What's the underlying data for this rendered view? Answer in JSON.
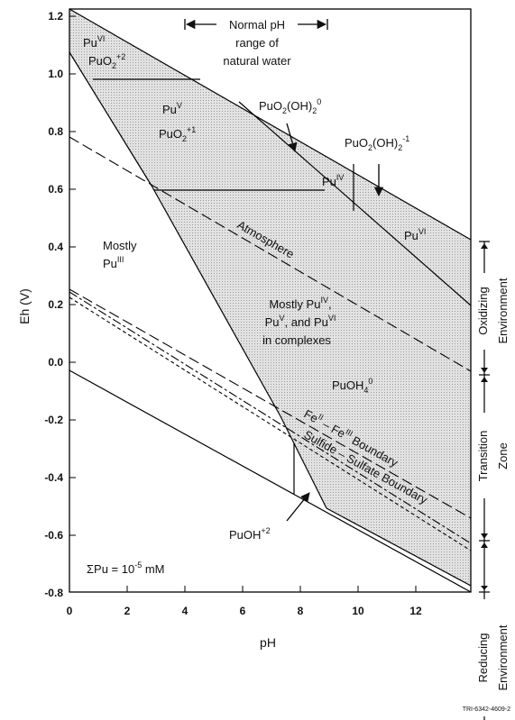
{
  "axes": {
    "x_label": "pH",
    "y_label": "Eh (V)",
    "x_ticks": [
      "0",
      "2",
      "4",
      "6",
      "8",
      "10",
      "12"
    ],
    "y_ticks": [
      "1.2",
      "1.0",
      "0.8",
      "0.6",
      "0.4",
      "0.2",
      "0.0",
      "-0.2",
      "-0.4",
      "-0.6",
      "-0.8"
    ]
  },
  "labels": {
    "normal_ph_line1": "Normal pH",
    "normal_ph_line2": "range of",
    "normal_ph_line3": "natural water",
    "pu_vi_base": "Pu",
    "pu_vi_sup": "VI",
    "puo2_2_base": "PuO",
    "puo2_2_sub": "2",
    "puo2_2_sup": "+2",
    "pu_v_base": "Pu",
    "pu_v_sup": "V",
    "puo2_1_base": "PuO",
    "puo2_1_sub": "2",
    "puo2_1_sup": "+1",
    "puo2oh2_0_a": "PuO",
    "puo2oh2_0_sub": "2",
    "puo2oh2_0_b": "(OH)",
    "puo2oh2_0_sub2": "2",
    "puo2oh2_0_sup": "0",
    "puo2oh2_m1_a": "PuO",
    "puo2oh2_m1_sub": "2",
    "puo2oh2_m1_b": "(OH)",
    "puo2oh2_m1_sub2": "2",
    "puo2oh2_m1_sup": "-1",
    "pu_iv_small_base": "Pu",
    "pu_iv_small_sup": "IV",
    "pu_vi_right_base": "Pu",
    "pu_vi_right_sup": "VI",
    "mostly_line1": "Mostly",
    "mostly_pu_iii_base": "Pu",
    "mostly_pu_iii_sup": "III",
    "atmosphere": "Atmosphere",
    "complex_line1_a": "Mostly Pu",
    "complex_line1_sup": "IV",
    "complex_line1_b": ",",
    "complex_line2_a": "Pu",
    "complex_line2_sup1": "V",
    "complex_line2_b": ", and Pu",
    "complex_line2_sup2": "VI",
    "complex_line3": "in complexes",
    "puoh4_base": "PuOH",
    "puoh4_sub": "4",
    "puoh4_sup": "0",
    "fe_boundary_a": "Fe",
    "fe_boundary_sup1": "II",
    "fe_boundary_b": " – Fe",
    "fe_boundary_sup2": "III",
    "fe_boundary_c": " Boundary",
    "sulfide_boundary": "Sulfide – Sulfate Boundary",
    "puoh2_base": "PuOH",
    "puoh2_sup": "+2",
    "sum_base": "ΣPu = 10",
    "sum_sup": "-5",
    "sum_unit": " mM",
    "oxidizing_1": "Oxidizing",
    "oxidizing_2": "Environment",
    "transition_1": "Transition",
    "transition_2": "Zone",
    "reducing_1": "Reducing",
    "reducing_2": "Environment"
  },
  "figure_id": "TRI-6342-4609-2"
}
